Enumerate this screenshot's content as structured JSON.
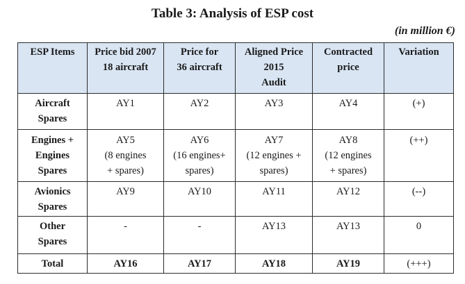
{
  "title": "Table 3: Analysis of ESP cost",
  "unit": "(in million €)",
  "headers": [
    {
      "lines": [
        "ESP Items"
      ]
    },
    {
      "lines": [
        "Price bid 2007",
        "18 aircraft"
      ]
    },
    {
      "lines": [
        "Price for",
        "36 aircraft"
      ]
    },
    {
      "lines": [
        "Aligned Price",
        "2015",
        "Audit"
      ]
    },
    {
      "lines": [
        "Contracted",
        "price"
      ]
    },
    {
      "lines": [
        "Variation"
      ]
    }
  ],
  "rows": [
    {
      "item": [
        "Aircraft",
        "Spares"
      ],
      "bid2007": [
        "AY1"
      ],
      "price36": [
        "AY2"
      ],
      "aligned2015": [
        "AY3"
      ],
      "contracted": [
        "AY4"
      ],
      "variation": "(+)"
    },
    {
      "item": [
        "Engines +",
        "Engines",
        "Spares"
      ],
      "bid2007": [
        "AY5",
        "(8 engines",
        "+ spares)"
      ],
      "price36": [
        "AY6",
        "(16 engines+",
        "spares)"
      ],
      "aligned2015": [
        "AY7",
        "(12 engines +",
        "spares)"
      ],
      "contracted": [
        "AY8",
        "(12 engines",
        "+ spares)"
      ],
      "variation": "(++)"
    },
    {
      "item": [
        "Avionics",
        "Spares"
      ],
      "bid2007": [
        "AY9"
      ],
      "price36": [
        "AY10"
      ],
      "aligned2015": [
        "AY11"
      ],
      "contracted": [
        "AY12"
      ],
      "variation": "(--)"
    },
    {
      "item": [
        "Other",
        "Spares"
      ],
      "bid2007": [
        "-"
      ],
      "price36": [
        "-"
      ],
      "aligned2015": [
        "AY13"
      ],
      "contracted": [
        "AY13"
      ],
      "variation": "0"
    }
  ],
  "total": {
    "item": "Total",
    "bid2007": "AY16",
    "price36": "AY17",
    "aligned2015": "AY18",
    "contracted": "AY19",
    "variation": "(+++)"
  }
}
